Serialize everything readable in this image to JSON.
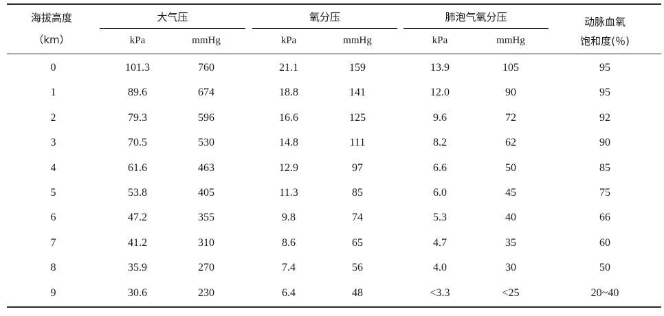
{
  "table": {
    "headers": {
      "altitude": "海拔高度",
      "altitude_unit": "（km）",
      "atm_pressure": "大气压",
      "o2_partial": "氧分压",
      "alveolar_o2": "肺泡气氧分压",
      "sao2_line1": "动脉血氧",
      "sao2_line2": "饱和度(％)",
      "units": [
        "kPa",
        "mmHg",
        "kPa",
        "mmHg",
        "kPa",
        "mmHg"
      ]
    },
    "rows": [
      [
        "0",
        "101.3",
        "760",
        "21.1",
        "159",
        "13.9",
        "105",
        "95"
      ],
      [
        "1",
        "89.6",
        "674",
        "18.8",
        "141",
        "12.0",
        "90",
        "95"
      ],
      [
        "2",
        "79.3",
        "596",
        "16.6",
        "125",
        "9.6",
        "72",
        "92"
      ],
      [
        "3",
        "70.5",
        "530",
        "14.8",
        "111",
        "8.2",
        "62",
        "90"
      ],
      [
        "4",
        "61.6",
        "463",
        "12.9",
        "97",
        "6.6",
        "50",
        "85"
      ],
      [
        "5",
        "53.8",
        "405",
        "11.3",
        "85",
        "6.0",
        "45",
        "75"
      ],
      [
        "6",
        "47.2",
        "355",
        "9.8",
        "74",
        "5.3",
        "40",
        "66"
      ],
      [
        "7",
        "41.2",
        "310",
        "8.6",
        "65",
        "4.7",
        "35",
        "60"
      ],
      [
        "8",
        "35.9",
        "270",
        "7.4",
        "56",
        "4.0",
        "30",
        "50"
      ],
      [
        "9",
        "30.6",
        "230",
        "6.4",
        "48",
        "<3.3",
        "<25",
        "20~40"
      ]
    ]
  }
}
